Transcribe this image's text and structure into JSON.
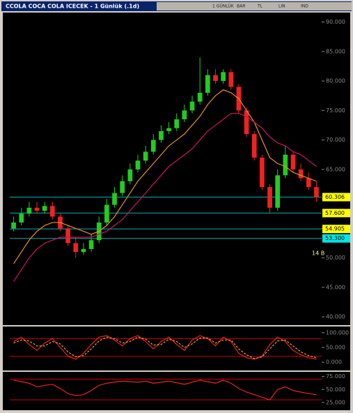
{
  "header": {
    "title": "CCOLA COCA COLA ICECEK - 1 Günlük (.1d)",
    "menu": [
      "1 GÜNLÜK",
      "BAR",
      "TL",
      "LIN",
      "IND"
    ]
  },
  "chart_data": [
    {
      "type": "candlestick",
      "open": [
        55,
        56,
        57.5,
        58.5,
        58,
        58.8,
        57,
        55,
        52.5,
        51,
        51.5,
        53,
        56,
        59,
        61,
        63,
        65,
        66.5,
        68,
        70,
        71.5,
        72,
        73.5,
        75,
        76.5,
        78,
        81,
        80,
        81.5,
        79,
        75,
        71,
        67,
        62,
        58.5,
        64,
        67.5,
        65,
        63.5,
        62
      ],
      "high": [
        57,
        58.5,
        59.5,
        59.5,
        59.5,
        59.5,
        57.5,
        55.5,
        53.5,
        52.5,
        54,
        57,
        60,
        62,
        64,
        66,
        67.5,
        69,
        71,
        72.5,
        73,
        74.5,
        76,
        77.5,
        84,
        82,
        82,
        82,
        82,
        79.5,
        75.5,
        71.5,
        67.5,
        62.5,
        65,
        69,
        68,
        66,
        64.5,
        63
      ],
      "low": [
        54.5,
        55.5,
        57,
        57.5,
        57.5,
        56.5,
        54.5,
        52,
        50,
        50.5,
        51,
        52.5,
        55.5,
        58.5,
        60.5,
        62.5,
        64.5,
        66,
        67.5,
        69.5,
        71,
        71.5,
        73,
        74.5,
        76,
        77.5,
        79.5,
        79.5,
        78.5,
        74.5,
        70.5,
        66.5,
        61.5,
        57.5,
        58,
        63.5,
        64.5,
        63,
        61.5,
        59.5
      ],
      "close": [
        56,
        57.5,
        58.5,
        58,
        58.8,
        57,
        55,
        52.5,
        51,
        51.5,
        53,
        56,
        59,
        61,
        63,
        65,
        66.5,
        68,
        70,
        71.5,
        72,
        73.5,
        75,
        76.5,
        78,
        81,
        80,
        81.5,
        79,
        75,
        71,
        67,
        62,
        58.5,
        64,
        67.5,
        65,
        63.5,
        62,
        60.3
      ],
      "up_color": "#22cc22",
      "down_color": "#ee2222",
      "series": [
        {
          "color": "#e8902a",
          "values": [
            49,
            51,
            53,
            54.5,
            55.5,
            56,
            56,
            55.5,
            55,
            54.5,
            54,
            54.5,
            55.5,
            57,
            59,
            61,
            63,
            64.5,
            66,
            67.5,
            69,
            70,
            71,
            72.5,
            74,
            76,
            77.5,
            78.5,
            78,
            77,
            75,
            73,
            70,
            67,
            66,
            65.5,
            64.5,
            64,
            63.5,
            63
          ]
        },
        {
          "color": "#cc1166",
          "values": [
            46,
            48,
            50,
            51.5,
            52.5,
            53,
            53.5,
            53.5,
            53.5,
            53.5,
            53.5,
            54,
            54.5,
            55.5,
            56.5,
            58,
            59.5,
            61,
            62.5,
            64,
            65.5,
            66.5,
            67.5,
            68.5,
            70,
            71.5,
            72.5,
            73.5,
            74.5,
            74.5,
            74,
            73,
            72,
            70.5,
            69.5,
            69,
            68,
            67.5,
            66.5,
            65.5
          ]
        }
      ],
      "levels": [
        {
          "value": 60.306,
          "label": "60.306",
          "color": "#ffff00"
        },
        {
          "value": 57.6,
          "label": "57.600",
          "color": "#ffff00"
        },
        {
          "value": 54.905,
          "label": "54.905",
          "color": "#ffff00"
        },
        {
          "value": 53.3,
          "label": "53.300",
          "color": "#00e5e5"
        }
      ],
      "annotation": "14 B",
      "ylim": [
        38.6,
        91.6
      ],
      "yticks": [
        {
          "value": 40,
          "label": "40.000"
        },
        {
          "value": 45,
          "label": "45.000"
        },
        {
          "value": 50,
          "label": "50.000"
        },
        {
          "value": 55,
          "label": "55.000"
        },
        {
          "value": 60,
          "label": "60.000"
        },
        {
          "value": 65,
          "label": "65.000"
        },
        {
          "value": 70,
          "label": "70.000"
        },
        {
          "value": 75,
          "label": "75.000"
        },
        {
          "value": 80,
          "label": "80.000"
        },
        {
          "value": 85,
          "label": "85.000"
        },
        {
          "value": 90,
          "label": "90.000"
        }
      ]
    },
    {
      "type": "line",
      "series": [
        {
          "color": "#ee2222",
          "values": [
            70,
            85,
            60,
            40,
            65,
            80,
            50,
            20,
            10,
            30,
            60,
            85,
            90,
            75,
            55,
            80,
            90,
            70,
            45,
            70,
            85,
            60,
            40,
            75,
            90,
            80,
            55,
            85,
            70,
            30,
            15,
            10,
            20,
            60,
            85,
            70,
            40,
            25,
            15,
            10
          ]
        },
        {
          "color": "#f0a030",
          "dashed": true,
          "values": [
            65,
            75,
            72,
            55,
            55,
            70,
            62,
            35,
            18,
            22,
            45,
            72,
            85,
            80,
            65,
            70,
            85,
            78,
            58,
            60,
            78,
            70,
            50,
            62,
            82,
            82,
            65,
            75,
            75,
            45,
            25,
            12,
            18,
            45,
            72,
            75,
            55,
            35,
            22,
            15
          ]
        }
      ],
      "bands": [
        20,
        80
      ],
      "ylim": [
        -28,
        121
      ],
      "yticks": [
        {
          "value": 0,
          "label": "0.000"
        },
        {
          "value": 50,
          "label": "50.000"
        },
        {
          "value": 100,
          "label": "100.000"
        }
      ]
    },
    {
      "type": "line",
      "series": [
        {
          "color": "#ee2222",
          "values": [
            68,
            65,
            62,
            55,
            58,
            60,
            52,
            42,
            38,
            40,
            48,
            58,
            62,
            64,
            66,
            65,
            64,
            66,
            62,
            64,
            66,
            63,
            60,
            64,
            68,
            65,
            62,
            68,
            62,
            52,
            45,
            40,
            35,
            30,
            50,
            55,
            48,
            45,
            42,
            40
          ]
        }
      ],
      "bands": [
        30,
        70
      ],
      "ylim": [
        10,
        84
      ],
      "yticks": [
        {
          "value": 25,
          "label": "25.000"
        },
        {
          "value": 50,
          "label": "50.000"
        },
        {
          "value": 75,
          "label": "75.000"
        }
      ]
    }
  ]
}
